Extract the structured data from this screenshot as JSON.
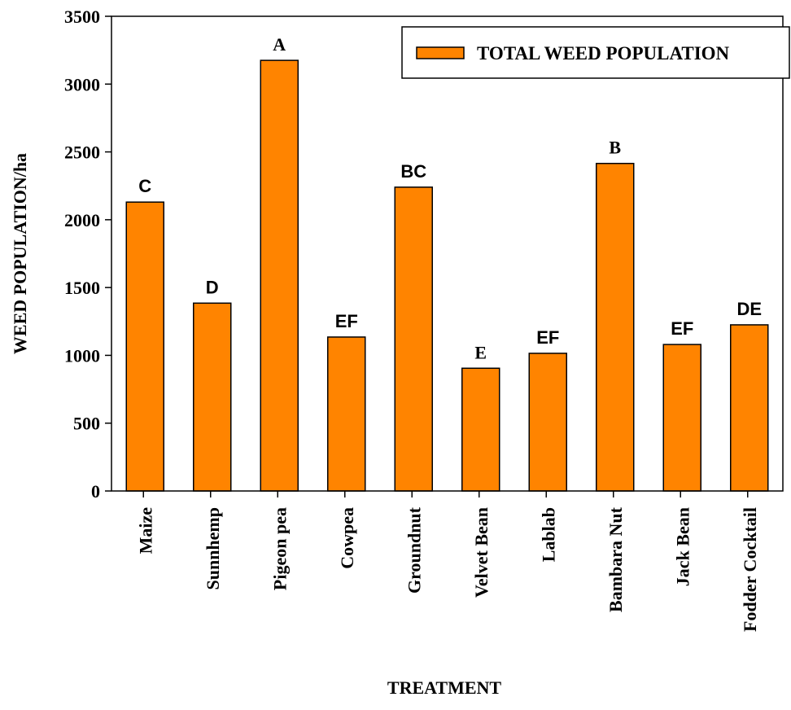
{
  "chart_data": {
    "type": "bar",
    "xlabel": "TREATMENT",
    "ylabel": "WEED POPULATION/ha",
    "ylim": [
      0,
      3500
    ],
    "yticks": [
      0,
      500,
      1000,
      1500,
      2000,
      2500,
      3000,
      3500
    ],
    "categories": [
      "Maize",
      "Sunnhemp",
      "Pigeon pea",
      "Cowpea",
      "Groundnut",
      "Velvet Bean",
      "Lablab",
      "Bambara Nut",
      "Jack Bean",
      "Fodder Cocktail"
    ],
    "series": [
      {
        "name": "TOTAL WEED POPULATION",
        "color": "#FF8400",
        "values": [
          2130,
          1385,
          3175,
          1135,
          2240,
          905,
          1015,
          2415,
          1080,
          1225
        ]
      }
    ],
    "annotations": [
      "C",
      "D",
      "A",
      "EF",
      "BC",
      "E",
      "EF",
      "B",
      "EF",
      "DE"
    ],
    "legend_position": "top-right",
    "grid": false
  }
}
